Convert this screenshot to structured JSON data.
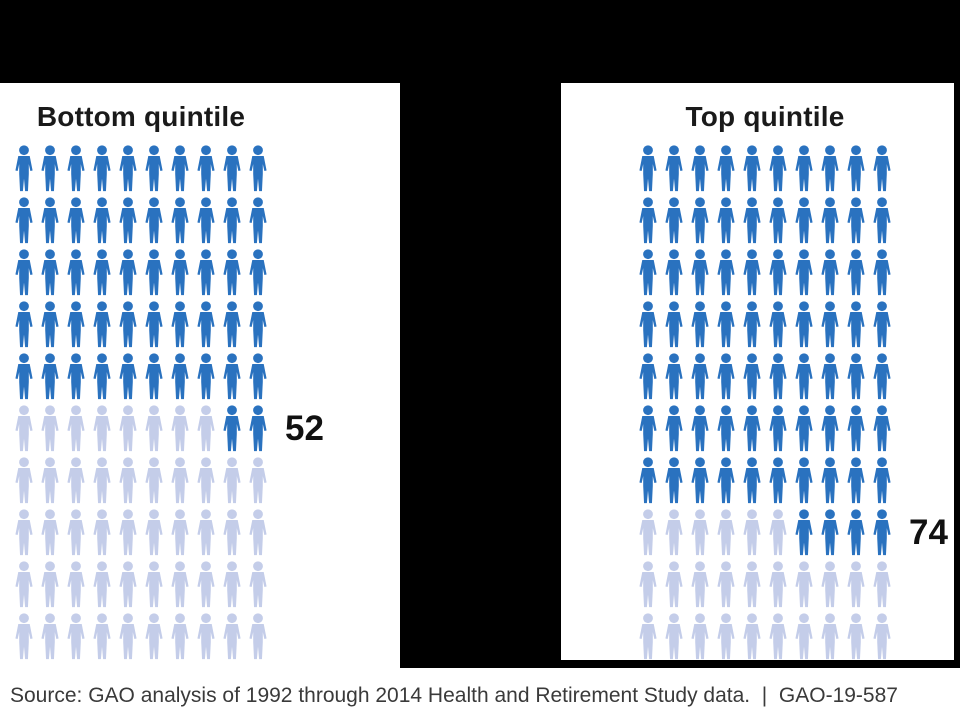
{
  "page": {
    "background_color": "#000000",
    "panel_color": "#ffffff"
  },
  "chart_data": {
    "type": "pictograph",
    "panels": [
      {
        "title": "Bottom quintile",
        "value": 52,
        "total_icons": 100,
        "icons_per_row": 10
      },
      {
        "title": "Top quintile",
        "value": 74,
        "total_icons": 100,
        "icons_per_row": 10
      }
    ],
    "partial_row_fill": "right-aligned",
    "colors": {
      "filled": "#2A72BF",
      "unfilled": "#C4CDE9",
      "value_label": "#111111",
      "title_text": "#1a1a1a",
      "source_text": "#3a3a3a"
    },
    "source_note": "Source: GAO analysis of 1992 through 2014 Health and Retirement Study data.  |  GAO-19-587"
  }
}
